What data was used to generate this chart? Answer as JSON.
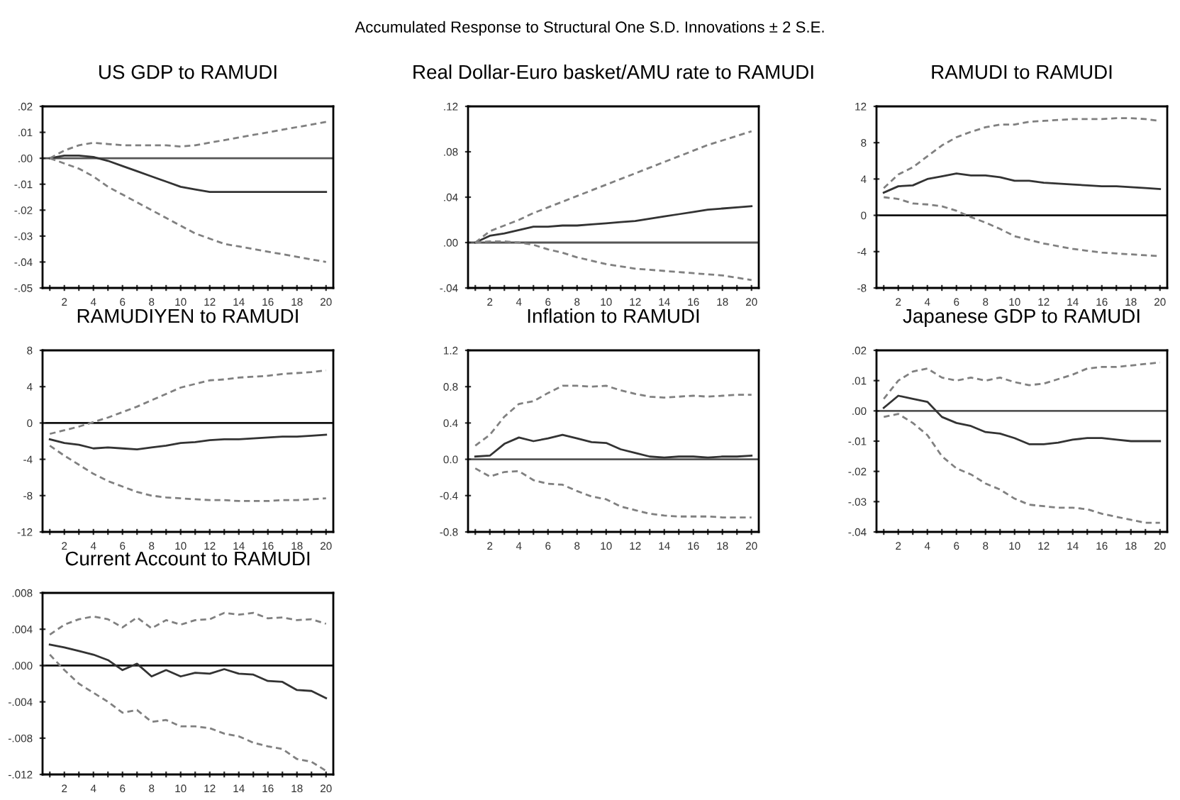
{
  "chart_data": [
    {
      "type": "line",
      "title": "US GDP to RAMUDI",
      "annotations": [
        "Accumulated Response to Structural One S.D. Innovations ± 2 S.E."
      ],
      "x": [
        1,
        2,
        3,
        4,
        5,
        6,
        7,
        8,
        9,
        10,
        11,
        12,
        13,
        14,
        15,
        16,
        17,
        18,
        19,
        20
      ],
      "xlim": [
        0.5,
        20.5
      ],
      "xticks": [
        {
          "value": 1,
          "label": null
        },
        {
          "value": 2,
          "label": "2"
        },
        {
          "value": 3,
          "label": null
        },
        {
          "value": 4,
          "label": "4"
        },
        {
          "value": 5,
          "label": null
        },
        {
          "value": 6,
          "label": "6"
        },
        {
          "value": 7,
          "label": null
        },
        {
          "value": 8,
          "label": "8"
        },
        {
          "value": 9,
          "label": null
        },
        {
          "value": 10,
          "label": "10"
        },
        {
          "value": 11,
          "label": null
        },
        {
          "value": 12,
          "label": "12"
        },
        {
          "value": 13,
          "label": null
        },
        {
          "value": 14,
          "label": "14"
        },
        {
          "value": 15,
          "label": null
        },
        {
          "value": 16,
          "label": "16"
        },
        {
          "value": 17,
          "label": null
        },
        {
          "value": 18,
          "label": "18"
        },
        {
          "value": 19,
          "label": null
        },
        {
          "value": 20,
          "label": "20"
        }
      ],
      "ylim": [
        -0.05,
        0.02
      ],
      "yticks": [
        {
          "value": -0.05,
          "label": "-.05"
        },
        {
          "value": -0.04,
          "label": "-.04"
        },
        {
          "value": -0.03,
          "label": "-.03"
        },
        {
          "value": -0.02,
          "label": "-.02"
        },
        {
          "value": -0.01,
          "label": "-.01"
        },
        {
          "value": 0,
          "label": ".00"
        },
        {
          "value": 0.01,
          "label": ".01"
        },
        {
          "value": 0.02,
          "label": ".02"
        }
      ],
      "ref_lines": [
        {
          "axis": "y",
          "value": 0,
          "color": "#555555"
        }
      ],
      "series": [
        {
          "color": "#333333",
          "line_style": "solid",
          "values": [
            0,
            0.001,
            0.001,
            0.0005,
            -0.001,
            -0.003,
            -0.005,
            -0.007,
            -0.009,
            -0.011,
            -0.012,
            -0.013,
            -0.013,
            -0.013,
            -0.013,
            -0.013,
            -0.013,
            -0.013,
            -0.013,
            -0.013
          ]
        },
        {
          "color": "#808080",
          "line_style": "dashed",
          "values": [
            0,
            0.003,
            0.005,
            0.006,
            0.0055,
            0.005,
            0.005,
            0.005,
            0.005,
            0.0045,
            0.005,
            0.006,
            0.007,
            0.008,
            0.009,
            0.01,
            0.011,
            0.012,
            0.013,
            0.014
          ]
        },
        {
          "color": "#808080",
          "line_style": "dashed",
          "values": [
            0,
            -0.002,
            -0.004,
            -0.007,
            -0.011,
            -0.014,
            -0.017,
            -0.02,
            -0.023,
            -0.026,
            -0.029,
            -0.031,
            -0.033,
            -0.034,
            -0.035,
            -0.036,
            -0.037,
            -0.038,
            -0.039,
            -0.04
          ]
        }
      ]
    },
    {
      "type": "line",
      "title": "Real Dollar-Euro basket/AMU rate to RAMUDI",
      "x": [
        1,
        2,
        3,
        4,
        5,
        6,
        7,
        8,
        9,
        10,
        11,
        12,
        13,
        14,
        15,
        16,
        17,
        18,
        19,
        20
      ],
      "xlim": [
        0.5,
        20.5
      ],
      "xticks": [
        {
          "value": 1,
          "label": null
        },
        {
          "value": 2,
          "label": "2"
        },
        {
          "value": 3,
          "label": null
        },
        {
          "value": 4,
          "label": "4"
        },
        {
          "value": 5,
          "label": null
        },
        {
          "value": 6,
          "label": "6"
        },
        {
          "value": 7,
          "label": null
        },
        {
          "value": 8,
          "label": "8"
        },
        {
          "value": 9,
          "label": null
        },
        {
          "value": 10,
          "label": "10"
        },
        {
          "value": 11,
          "label": null
        },
        {
          "value": 12,
          "label": "12"
        },
        {
          "value": 13,
          "label": null
        },
        {
          "value": 14,
          "label": "14"
        },
        {
          "value": 15,
          "label": null
        },
        {
          "value": 16,
          "label": "16"
        },
        {
          "value": 17,
          "label": null
        },
        {
          "value": 18,
          "label": "18"
        },
        {
          "value": 19,
          "label": null
        },
        {
          "value": 20,
          "label": "20"
        }
      ],
      "ylim": [
        -0.04,
        0.12
      ],
      "yticks": [
        {
          "value": -0.04,
          "label": "-.04"
        },
        {
          "value": 0,
          "label": ".00"
        },
        {
          "value": 0.04,
          "label": ".04"
        },
        {
          "value": 0.08,
          "label": ".08"
        },
        {
          "value": 0.12,
          "label": ".12"
        }
      ],
      "ref_lines": [
        {
          "axis": "y",
          "value": 0,
          "color": "#555555"
        }
      ],
      "series": [
        {
          "color": "#333333",
          "line_style": "solid",
          "values": [
            0,
            0.006,
            0.008,
            0.011,
            0.014,
            0.014,
            0.015,
            0.015,
            0.016,
            0.017,
            0.018,
            0.019,
            0.021,
            0.023,
            0.025,
            0.027,
            0.029,
            0.03,
            0.031,
            0.032
          ]
        },
        {
          "color": "#808080",
          "line_style": "dashed",
          "values": [
            0,
            0.01,
            0.015,
            0.02,
            0.026,
            0.031,
            0.036,
            0.041,
            0.046,
            0.051,
            0.056,
            0.061,
            0.066,
            0.071,
            0.076,
            0.081,
            0.086,
            0.09,
            0.094,
            0.098
          ]
        },
        {
          "color": "#808080",
          "line_style": "dashed",
          "values": [
            0,
            0.001,
            0.001,
            0,
            -0.002,
            -0.006,
            -0.009,
            -0.013,
            -0.016,
            -0.019,
            -0.021,
            -0.023,
            -0.024,
            -0.025,
            -0.026,
            -0.027,
            -0.028,
            -0.029,
            -0.031,
            -0.033
          ]
        }
      ]
    },
    {
      "type": "line",
      "title": "RAMUDI to RAMUDI",
      "x": [
        1,
        2,
        3,
        4,
        5,
        6,
        7,
        8,
        9,
        10,
        11,
        12,
        13,
        14,
        15,
        16,
        17,
        18,
        19,
        20
      ],
      "xlim": [
        0.5,
        20.5
      ],
      "xticks": [
        {
          "value": 1,
          "label": null
        },
        {
          "value": 2,
          "label": "2"
        },
        {
          "value": 3,
          "label": null
        },
        {
          "value": 4,
          "label": "4"
        },
        {
          "value": 5,
          "label": null
        },
        {
          "value": 6,
          "label": "6"
        },
        {
          "value": 7,
          "label": null
        },
        {
          "value": 8,
          "label": "8"
        },
        {
          "value": 9,
          "label": null
        },
        {
          "value": 10,
          "label": "10"
        },
        {
          "value": 11,
          "label": null
        },
        {
          "value": 12,
          "label": "12"
        },
        {
          "value": 13,
          "label": null
        },
        {
          "value": 14,
          "label": "14"
        },
        {
          "value": 15,
          "label": null
        },
        {
          "value": 16,
          "label": "16"
        },
        {
          "value": 17,
          "label": null
        },
        {
          "value": 18,
          "label": "18"
        },
        {
          "value": 19,
          "label": null
        },
        {
          "value": 20,
          "label": "20"
        }
      ],
      "ylim": [
        -8,
        12
      ],
      "yticks": [
        -8,
        -4,
        0,
        4,
        8,
        12
      ],
      "ref_lines": [
        {
          "axis": "y",
          "value": 0,
          "color": "#111111"
        }
      ],
      "series": [
        {
          "color": "#333333",
          "line_style": "solid",
          "values": [
            2.5,
            3.2,
            3.3,
            4.0,
            4.3,
            4.6,
            4.4,
            4.4,
            4.2,
            3.8,
            3.8,
            3.6,
            3.5,
            3.4,
            3.3,
            3.2,
            3.2,
            3.1,
            3.0,
            2.9
          ]
        },
        {
          "color": "#808080",
          "line_style": "dashed",
          "values": [
            3.0,
            4.5,
            5.3,
            6.5,
            7.7,
            8.6,
            9.2,
            9.7,
            10.0,
            10.0,
            10.3,
            10.4,
            10.5,
            10.6,
            10.6,
            10.6,
            10.7,
            10.7,
            10.6,
            10.4
          ]
        },
        {
          "color": "#808080",
          "line_style": "dashed",
          "values": [
            2.0,
            1.8,
            1.3,
            1.2,
            1.0,
            0.5,
            -0.2,
            -0.8,
            -1.5,
            -2.3,
            -2.7,
            -3.1,
            -3.4,
            -3.7,
            -3.9,
            -4.1,
            -4.2,
            -4.3,
            -4.4,
            -4.5
          ]
        }
      ]
    },
    {
      "type": "line",
      "title": "RAMUDIYEN to RAMUDI",
      "x": [
        1,
        2,
        3,
        4,
        5,
        6,
        7,
        8,
        9,
        10,
        11,
        12,
        13,
        14,
        15,
        16,
        17,
        18,
        19,
        20
      ],
      "xlim": [
        0.5,
        20.5
      ],
      "xticks": [
        {
          "value": 1,
          "label": null
        },
        {
          "value": 2,
          "label": "2"
        },
        {
          "value": 3,
          "label": null
        },
        {
          "value": 4,
          "label": "4"
        },
        {
          "value": 5,
          "label": null
        },
        {
          "value": 6,
          "label": "6"
        },
        {
          "value": 7,
          "label": null
        },
        {
          "value": 8,
          "label": "8"
        },
        {
          "value": 9,
          "label": null
        },
        {
          "value": 10,
          "label": "10"
        },
        {
          "value": 11,
          "label": null
        },
        {
          "value": 12,
          "label": "12"
        },
        {
          "value": 13,
          "label": null
        },
        {
          "value": 14,
          "label": "14"
        },
        {
          "value": 15,
          "label": null
        },
        {
          "value": 16,
          "label": "16"
        },
        {
          "value": 17,
          "label": null
        },
        {
          "value": 18,
          "label": "18"
        },
        {
          "value": 19,
          "label": null
        },
        {
          "value": 20,
          "label": "20"
        }
      ],
      "ylim": [
        -12,
        8
      ],
      "yticks": [
        -12,
        -8,
        -4,
        0,
        4,
        8
      ],
      "ref_lines": [
        {
          "axis": "y",
          "value": 0,
          "color": "#111111"
        }
      ],
      "series": [
        {
          "color": "#333333",
          "line_style": "solid",
          "values": [
            -1.8,
            -2.2,
            -2.4,
            -2.8,
            -2.7,
            -2.8,
            -2.9,
            -2.7,
            -2.5,
            -2.2,
            -2.1,
            -1.9,
            -1.8,
            -1.8,
            -1.7,
            -1.6,
            -1.5,
            -1.5,
            -1.4,
            -1.3
          ]
        },
        {
          "color": "#808080",
          "line_style": "dashed",
          "values": [
            -1.2,
            -0.8,
            -0.4,
            0.1,
            0.6,
            1.2,
            1.8,
            2.5,
            3.2,
            3.9,
            4.3,
            4.7,
            4.8,
            5.0,
            5.1,
            5.2,
            5.4,
            5.5,
            5.6,
            5.8
          ]
        },
        {
          "color": "#808080",
          "line_style": "dashed",
          "values": [
            -2.5,
            -3.6,
            -4.6,
            -5.6,
            -6.4,
            -7.0,
            -7.6,
            -8.0,
            -8.2,
            -8.3,
            -8.4,
            -8.5,
            -8.5,
            -8.6,
            -8.6,
            -8.6,
            -8.5,
            -8.5,
            -8.4,
            -8.3
          ]
        }
      ]
    },
    {
      "type": "line",
      "title": "Inflation to RAMUDI",
      "x": [
        1,
        2,
        3,
        4,
        5,
        6,
        7,
        8,
        9,
        10,
        11,
        12,
        13,
        14,
        15,
        16,
        17,
        18,
        19,
        20
      ],
      "xlim": [
        0.5,
        20.5
      ],
      "xticks": [
        {
          "value": 1,
          "label": null
        },
        {
          "value": 2,
          "label": "2"
        },
        {
          "value": 3,
          "label": null
        },
        {
          "value": 4,
          "label": "4"
        },
        {
          "value": 5,
          "label": null
        },
        {
          "value": 6,
          "label": "6"
        },
        {
          "value": 7,
          "label": null
        },
        {
          "value": 8,
          "label": "8"
        },
        {
          "value": 9,
          "label": null
        },
        {
          "value": 10,
          "label": "10"
        },
        {
          "value": 11,
          "label": null
        },
        {
          "value": 12,
          "label": "12"
        },
        {
          "value": 13,
          "label": null
        },
        {
          "value": 14,
          "label": "14"
        },
        {
          "value": 15,
          "label": null
        },
        {
          "value": 16,
          "label": "16"
        },
        {
          "value": 17,
          "label": null
        },
        {
          "value": 18,
          "label": "18"
        },
        {
          "value": 19,
          "label": null
        },
        {
          "value": 20,
          "label": "20"
        }
      ],
      "ylim": [
        -0.8,
        1.2
      ],
      "yticks": [
        -0.8,
        -0.4,
        {
          "value": 0,
          "label": "0.0"
        },
        0.4,
        0.8,
        1.2
      ],
      "ref_lines": [
        {
          "axis": "y",
          "value": 0,
          "color": "#555555"
        }
      ],
      "series": [
        {
          "color": "#333333",
          "line_style": "solid",
          "values": [
            0.03,
            0.04,
            0.17,
            0.24,
            0.2,
            0.23,
            0.27,
            0.23,
            0.19,
            0.18,
            0.11,
            0.07,
            0.03,
            0.02,
            0.03,
            0.03,
            0.02,
            0.03,
            0.03,
            0.04
          ]
        },
        {
          "color": "#808080",
          "line_style": "dashed",
          "values": [
            0.15,
            0.27,
            0.47,
            0.61,
            0.64,
            0.73,
            0.81,
            0.81,
            0.8,
            0.81,
            0.76,
            0.72,
            0.69,
            0.68,
            0.69,
            0.7,
            0.69,
            0.7,
            0.71,
            0.71
          ]
        },
        {
          "color": "#808080",
          "line_style": "dashed",
          "values": [
            -0.1,
            -0.19,
            -0.14,
            -0.13,
            -0.23,
            -0.27,
            -0.28,
            -0.35,
            -0.41,
            -0.44,
            -0.52,
            -0.56,
            -0.6,
            -0.62,
            -0.63,
            -0.63,
            -0.63,
            -0.64,
            -0.64,
            -0.64
          ]
        }
      ]
    },
    {
      "type": "line",
      "title": "Japanese GDP to RAMUDI",
      "x": [
        1,
        2,
        3,
        4,
        5,
        6,
        7,
        8,
        9,
        10,
        11,
        12,
        13,
        14,
        15,
        16,
        17,
        18,
        19,
        20
      ],
      "xlim": [
        0.5,
        20.5
      ],
      "xticks": [
        {
          "value": 1,
          "label": null
        },
        {
          "value": 2,
          "label": "2"
        },
        {
          "value": 3,
          "label": null
        },
        {
          "value": 4,
          "label": "4"
        },
        {
          "value": 5,
          "label": null
        },
        {
          "value": 6,
          "label": "6"
        },
        {
          "value": 7,
          "label": null
        },
        {
          "value": 8,
          "label": "8"
        },
        {
          "value": 9,
          "label": null
        },
        {
          "value": 10,
          "label": "10"
        },
        {
          "value": 11,
          "label": null
        },
        {
          "value": 12,
          "label": "12"
        },
        {
          "value": 13,
          "label": null
        },
        {
          "value": 14,
          "label": "14"
        },
        {
          "value": 15,
          "label": null
        },
        {
          "value": 16,
          "label": "16"
        },
        {
          "value": 17,
          "label": null
        },
        {
          "value": 18,
          "label": "18"
        },
        {
          "value": 19,
          "label": null
        },
        {
          "value": 20,
          "label": "20"
        }
      ],
      "ylim": [
        -0.04,
        0.02
      ],
      "yticks": [
        {
          "value": -0.04,
          "label": "-.04"
        },
        {
          "value": -0.03,
          "label": "-.03"
        },
        {
          "value": -0.02,
          "label": "-.02"
        },
        {
          "value": -0.01,
          "label": "-.01"
        },
        {
          "value": 0,
          "label": ".00"
        },
        {
          "value": 0.01,
          "label": ".01"
        },
        {
          "value": 0.02,
          "label": ".02"
        }
      ],
      "ref_lines": [
        {
          "axis": "y",
          "value": 0,
          "color": "#555555"
        }
      ],
      "series": [
        {
          "color": "#333333",
          "line_style": "solid",
          "values": [
            0.001,
            0.005,
            0.004,
            0.003,
            -0.002,
            -0.004,
            -0.005,
            -0.007,
            -0.0075,
            -0.009,
            -0.011,
            -0.011,
            -0.0105,
            -0.0095,
            -0.009,
            -0.009,
            -0.0095,
            -0.01,
            -0.01,
            -0.01
          ]
        },
        {
          "color": "#808080",
          "line_style": "dashed",
          "values": [
            0.004,
            0.01,
            0.013,
            0.014,
            0.011,
            0.01,
            0.011,
            0.01,
            0.011,
            0.0095,
            0.0085,
            0.009,
            0.0105,
            0.012,
            0.014,
            0.0145,
            0.0145,
            0.015,
            0.0155,
            0.016
          ]
        },
        {
          "color": "#808080",
          "line_style": "dashed",
          "values": [
            -0.002,
            -0.001,
            -0.004,
            -0.008,
            -0.015,
            -0.019,
            -0.021,
            -0.024,
            -0.026,
            -0.029,
            -0.031,
            -0.0315,
            -0.032,
            -0.032,
            -0.0325,
            -0.034,
            -0.035,
            -0.036,
            -0.037,
            -0.037
          ]
        }
      ]
    },
    {
      "type": "line",
      "title": "Current Account to RAMUDI",
      "x": [
        1,
        2,
        3,
        4,
        5,
        6,
        7,
        8,
        9,
        10,
        11,
        12,
        13,
        14,
        15,
        16,
        17,
        18,
        19,
        20
      ],
      "xlim": [
        0.5,
        20.5
      ],
      "xticks": [
        {
          "value": 1,
          "label": null
        },
        {
          "value": 2,
          "label": "2"
        },
        {
          "value": 3,
          "label": null
        },
        {
          "value": 4,
          "label": "4"
        },
        {
          "value": 5,
          "label": null
        },
        {
          "value": 6,
          "label": "6"
        },
        {
          "value": 7,
          "label": null
        },
        {
          "value": 8,
          "label": "8"
        },
        {
          "value": 9,
          "label": null
        },
        {
          "value": 10,
          "label": "10"
        },
        {
          "value": 11,
          "label": null
        },
        {
          "value": 12,
          "label": "12"
        },
        {
          "value": 13,
          "label": null
        },
        {
          "value": 14,
          "label": "14"
        },
        {
          "value": 15,
          "label": null
        },
        {
          "value": 16,
          "label": "16"
        },
        {
          "value": 17,
          "label": null
        },
        {
          "value": 18,
          "label": "18"
        },
        {
          "value": 19,
          "label": null
        },
        {
          "value": 20,
          "label": "20"
        }
      ],
      "ylim": [
        -0.012,
        0.008
      ],
      "yticks": [
        {
          "value": -0.012,
          "label": "-.012"
        },
        {
          "value": -0.008,
          "label": "-.008"
        },
        {
          "value": -0.004,
          "label": "-.004"
        },
        {
          "value": 0,
          "label": ".000"
        },
        {
          "value": 0.004,
          "label": ".004"
        },
        {
          "value": 0.008,
          "label": ".008"
        }
      ],
      "ref_lines": [
        {
          "axis": "y",
          "value": 0,
          "color": "#111111"
        }
      ],
      "series": [
        {
          "color": "#333333",
          "line_style": "solid",
          "values": [
            0.0023,
            0.002,
            0.0016,
            0.0012,
            0.0006,
            -0.0005,
            0.0002,
            -0.0012,
            -0.0005,
            -0.0012,
            -0.0008,
            -0.0009,
            -0.0004,
            -0.0009,
            -0.001,
            -0.0017,
            -0.0018,
            -0.0027,
            -0.0028,
            -0.0036
          ]
        },
        {
          "color": "#808080",
          "line_style": "dashed",
          "values": [
            0.0034,
            0.0045,
            0.0051,
            0.0054,
            0.0051,
            0.0042,
            0.0053,
            0.0041,
            0.005,
            0.0045,
            0.005,
            0.0051,
            0.0058,
            0.0056,
            0.0058,
            0.0052,
            0.0053,
            0.005,
            0.0051,
            0.0046
          ]
        },
        {
          "color": "#808080",
          "line_style": "dashed",
          "values": [
            0.0012,
            -0.0005,
            -0.002,
            -0.003,
            -0.004,
            -0.0052,
            -0.0049,
            -0.0062,
            -0.006,
            -0.0067,
            -0.0067,
            -0.0069,
            -0.0075,
            -0.0078,
            -0.0085,
            -0.0089,
            -0.0092,
            -0.0103,
            -0.0106,
            -0.0116
          ]
        }
      ]
    }
  ]
}
